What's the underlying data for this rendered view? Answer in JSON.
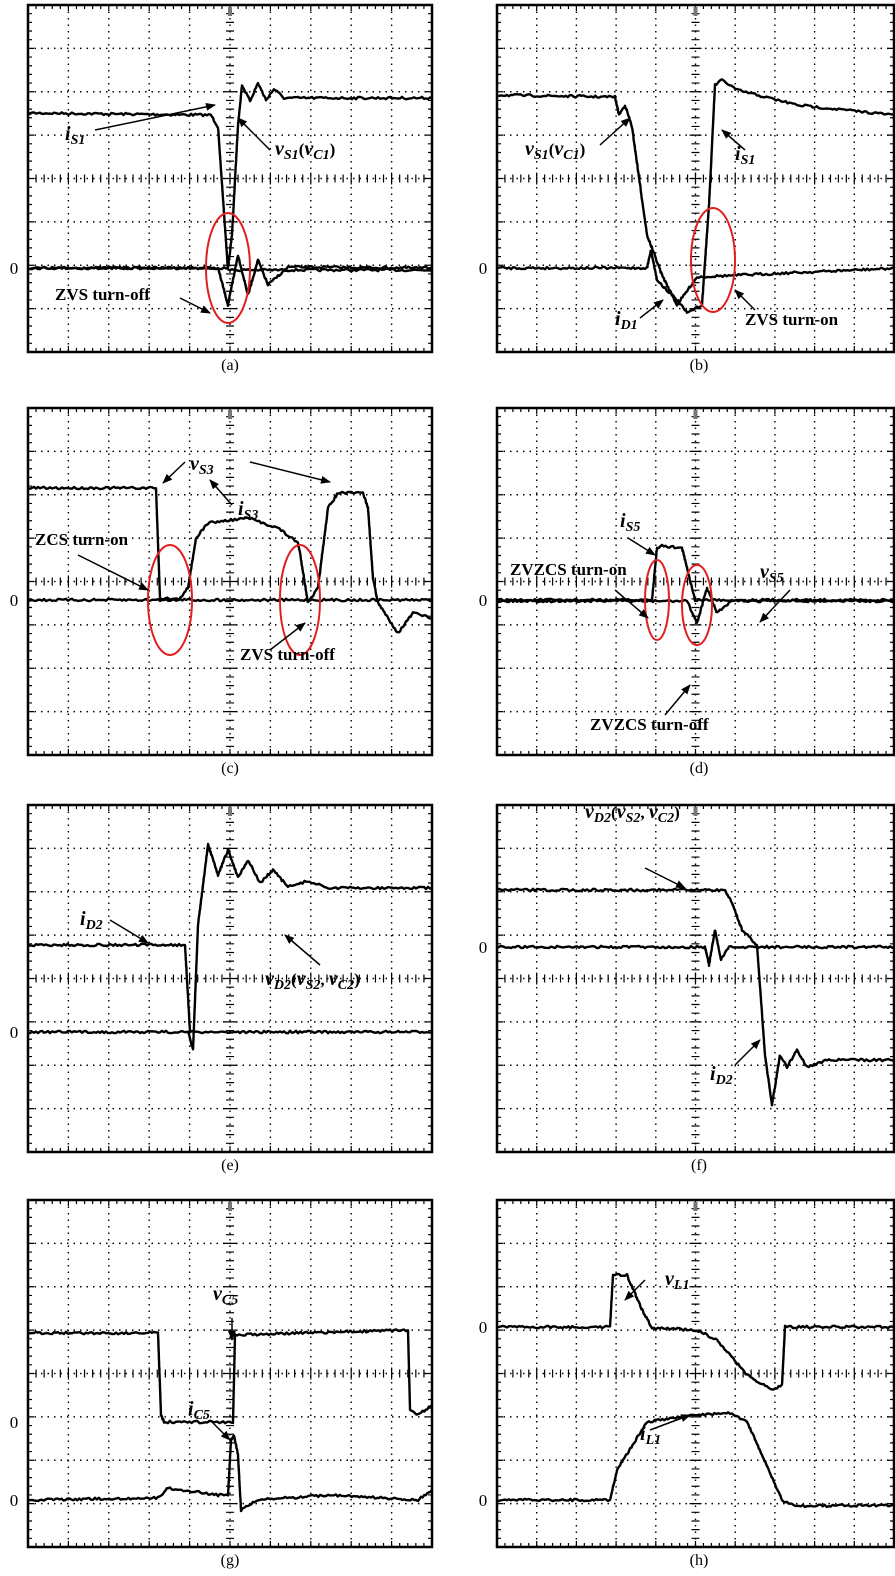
{
  "panels": [
    {
      "caption": "(a)",
      "zero_labels": [
        "0"
      ],
      "annotations": [
        {
          "runs": [
            {
              "it": "i"
            },
            {
              "sub": "S1"
            }
          ]
        },
        {
          "runs": [
            {
              "it": "v"
            },
            {
              "sub": "S1"
            },
            {
              "n": "("
            },
            {
              "it": "v"
            },
            {
              "sub": "C1"
            },
            {
              "n": ")"
            }
          ]
        },
        {
          "runs": [
            {
              "n": "ZVS turn-off"
            }
          ]
        }
      ]
    },
    {
      "caption": "(b)",
      "zero_labels": [
        "0"
      ],
      "annotations": [
        {
          "runs": [
            {
              "it": "v"
            },
            {
              "sub": "S1"
            },
            {
              "n": "("
            },
            {
              "it": "v"
            },
            {
              "sub": "C1"
            },
            {
              "n": ")"
            }
          ]
        },
        {
          "runs": [
            {
              "it": "i"
            },
            {
              "sub": "S1"
            }
          ]
        },
        {
          "runs": [
            {
              "it": "i"
            },
            {
              "sub": "D1"
            }
          ]
        },
        {
          "runs": [
            {
              "n": "ZVS turn-on"
            }
          ]
        }
      ]
    },
    {
      "caption": "(c)",
      "zero_labels": [
        "0"
      ],
      "annotations": [
        {
          "runs": [
            {
              "it": "v"
            },
            {
              "sub": "S3"
            }
          ]
        },
        {
          "runs": [
            {
              "it": "i"
            },
            {
              "sub": "S3"
            }
          ]
        },
        {
          "runs": [
            {
              "n": "ZCS turn-on"
            }
          ]
        },
        {
          "runs": [
            {
              "n": "ZVS turn-off"
            }
          ]
        }
      ]
    },
    {
      "caption": "(d)",
      "zero_labels": [
        "0"
      ],
      "annotations": [
        {
          "runs": [
            {
              "it": "i"
            },
            {
              "sub": "S5"
            }
          ]
        },
        {
          "runs": [
            {
              "n": "ZVZCS turn-on"
            }
          ]
        },
        {
          "runs": [
            {
              "it": "v"
            },
            {
              "sub": "S5"
            }
          ]
        },
        {
          "runs": [
            {
              "n": "ZVZCS turn-off"
            }
          ]
        }
      ]
    },
    {
      "caption": "(e)",
      "zero_labels": [
        "0"
      ],
      "annotations": [
        {
          "runs": [
            {
              "it": "i"
            },
            {
              "sub": "D2"
            }
          ]
        },
        {
          "runs": [
            {
              "it": "v"
            },
            {
              "sub": "D2"
            },
            {
              "n": "("
            },
            {
              "it": "v"
            },
            {
              "sub": "S2"
            },
            {
              "n": ", "
            },
            {
              "it": "v"
            },
            {
              "sub": "C2"
            },
            {
              "n": ")"
            }
          ]
        }
      ]
    },
    {
      "caption": "(f)",
      "zero_labels": [
        "0"
      ],
      "annotations": [
        {
          "runs": [
            {
              "it": "v"
            },
            {
              "sub": "D2"
            },
            {
              "n": "("
            },
            {
              "it": "v"
            },
            {
              "sub": "S2"
            },
            {
              "n": ", "
            },
            {
              "it": "v"
            },
            {
              "sub": "C2"
            },
            {
              "n": ")"
            }
          ]
        },
        {
          "runs": [
            {
              "it": "i"
            },
            {
              "sub": "D2"
            }
          ]
        }
      ]
    },
    {
      "caption": "(g)",
      "zero_labels": [
        "0",
        "0"
      ],
      "annotations": [
        {
          "runs": [
            {
              "it": "v"
            },
            {
              "sub": "C5"
            }
          ]
        },
        {
          "runs": [
            {
              "it": "i"
            },
            {
              "sub": "C5"
            }
          ]
        }
      ]
    },
    {
      "caption": "(h)",
      "zero_labels": [
        "0",
        "0"
      ],
      "annotations": [
        {
          "runs": [
            {
              "it": "v"
            },
            {
              "sub": "L1"
            }
          ]
        },
        {
          "runs": [
            {
              "it": "i"
            },
            {
              "sub": "L1"
            }
          ]
        }
      ]
    }
  ]
}
